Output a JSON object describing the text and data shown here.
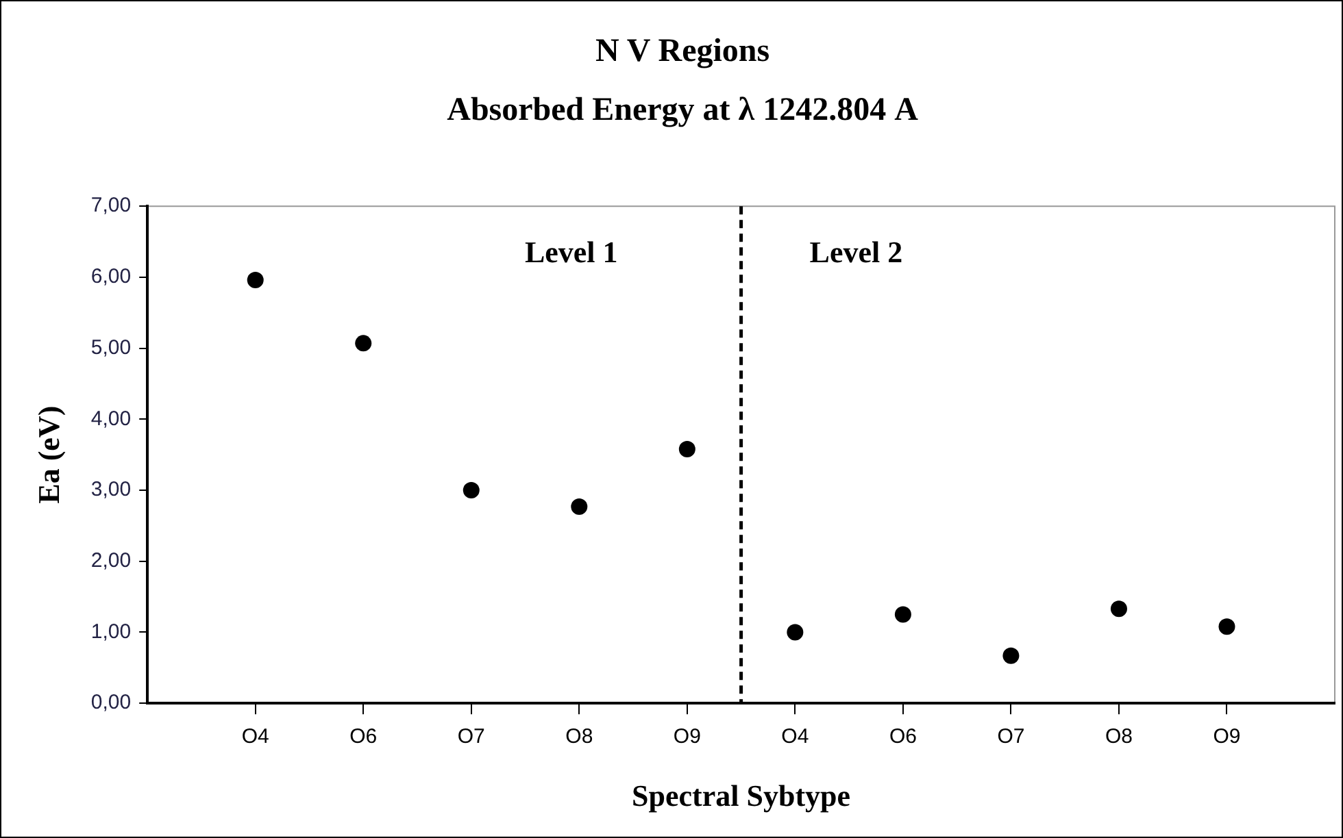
{
  "chart_data": {
    "type": "scatter",
    "title": "N V Regions",
    "subtitle": "Absorbed Energy at λ 1242.804 A",
    "xlabel": "Spectral Sybtype",
    "ylabel": "Ea (eV)",
    "categories": [
      "O4",
      "O6",
      "O7",
      "O8",
      "O9",
      "O4",
      "O6",
      "O7",
      "O8",
      "O9"
    ],
    "series": [
      {
        "color": "#000000",
        "values": [
          5.96,
          5.07,
          3.0,
          2.77,
          3.58,
          1.0,
          1.25,
          0.67,
          1.33,
          1.08
        ]
      }
    ],
    "ylim": [
      0,
      7
    ],
    "yticks": [
      {
        "value": 0,
        "label": "0,00"
      },
      {
        "value": 1,
        "label": "1,00"
      },
      {
        "value": 2,
        "label": "2,00"
      },
      {
        "value": 3,
        "label": "3,00"
      },
      {
        "value": 4,
        "label": "4,00"
      },
      {
        "value": 5,
        "label": "5,00"
      },
      {
        "value": 6,
        "label": "6,00"
      },
      {
        "value": 7,
        "label": "7,00"
      }
    ],
    "annotations": [
      "Level 1",
      "Level 2"
    ],
    "marker": "circle",
    "grid": false,
    "legend": false
  }
}
